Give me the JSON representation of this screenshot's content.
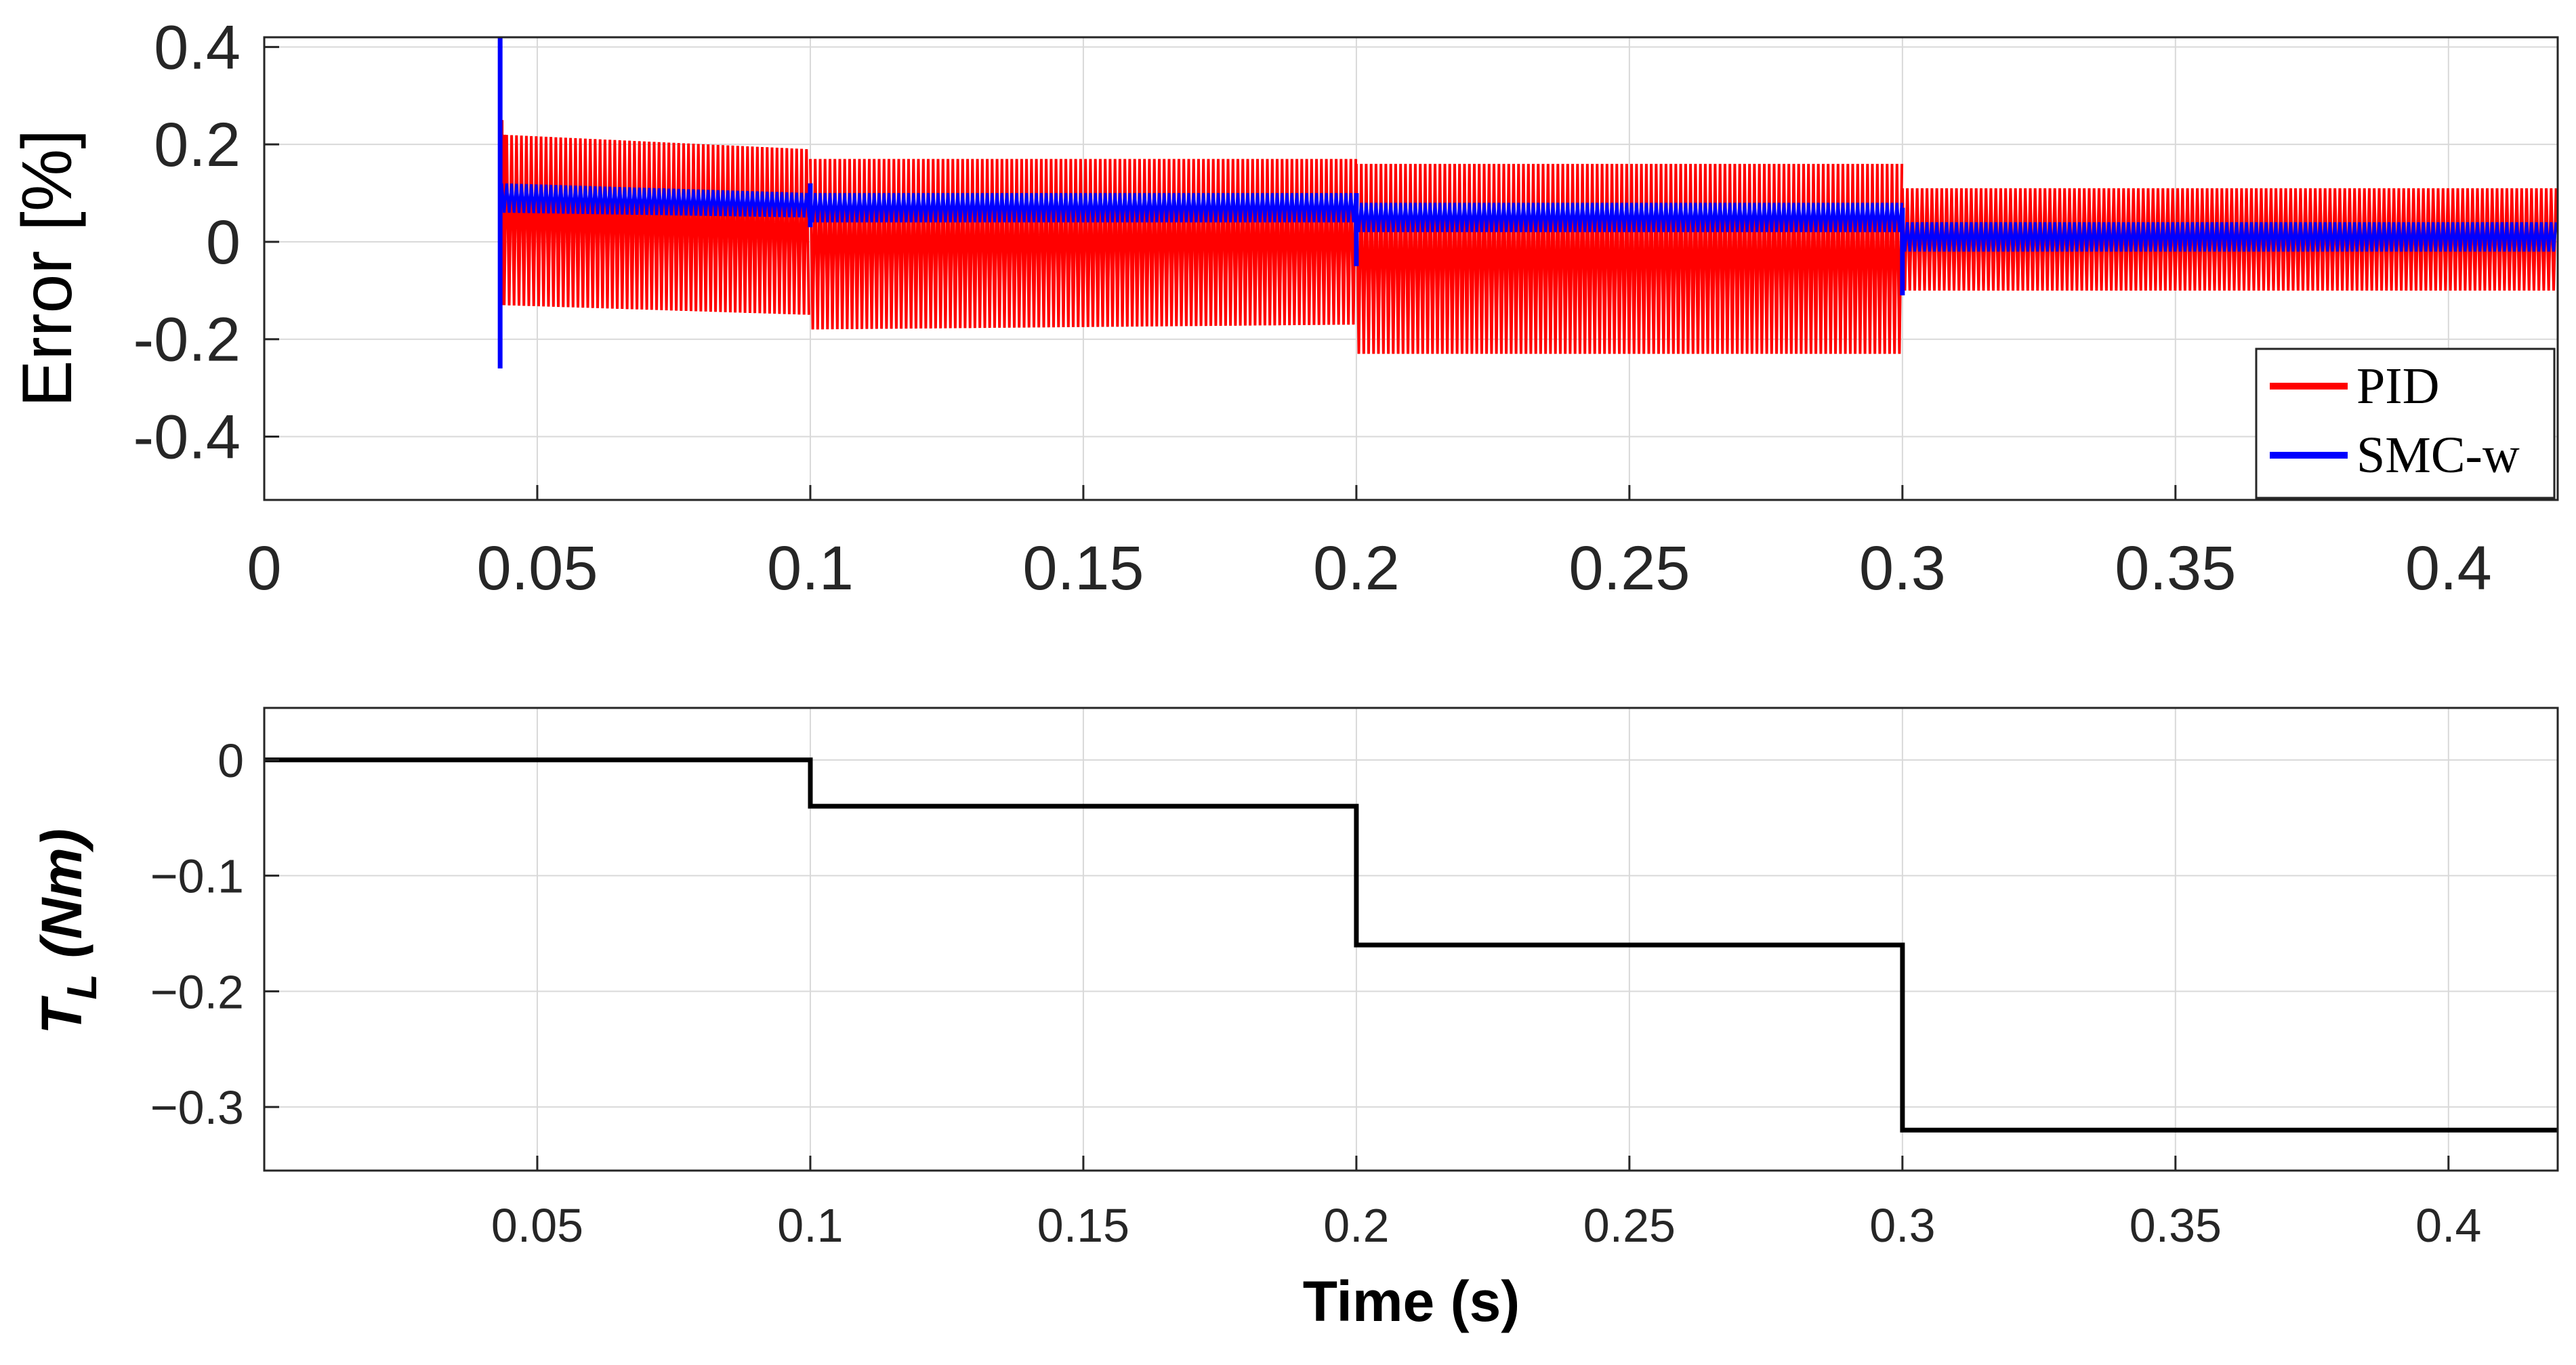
{
  "chart_data": [
    {
      "type": "line",
      "ylabel": "Error [%]",
      "xlim": [
        0,
        0.42
      ],
      "ylim": [
        -0.53,
        0.42
      ],
      "x_ticks": [
        0,
        0.05,
        0.1,
        0.15,
        0.2,
        0.25,
        0.3,
        0.35,
        0.4
      ],
      "x_tick_labels": [
        "0",
        "0.05",
        "0.1",
        "0.15",
        "0.2",
        "0.25",
        "0.3",
        "0.35",
        "0.4"
      ],
      "y_ticks": [
        0.4,
        0.2,
        0,
        -0.2,
        -0.4
      ],
      "y_tick_labels": [
        "0.4",
        "0.2",
        "0",
        "-0.2",
        "-0.4"
      ],
      "grid": true,
      "legend_position": "bottom-right",
      "series": [
        {
          "name": "PID",
          "color": "#ff0000",
          "style": "oscillating band",
          "band": [
            {
              "t": [
                0.0435,
                0.1
              ],
              "upper": [
                0.22,
                0.19
              ],
              "lower": [
                -0.13,
                -0.15
              ],
              "center": [
                0.07,
                0.06
              ]
            },
            {
              "t": [
                0.1,
                0.2
              ],
              "upper": [
                0.17,
                0.17
              ],
              "lower": [
                -0.18,
                -0.17
              ],
              "center": [
                0.07,
                0.07
              ]
            },
            {
              "t": [
                0.2,
                0.3
              ],
              "upper": [
                0.16,
                0.16
              ],
              "lower": [
                -0.23,
                -0.23
              ],
              "center": [
                0.04,
                0.04
              ]
            },
            {
              "t": [
                0.3,
                0.42
              ],
              "upper": [
                0.11,
                0.11
              ],
              "lower": [
                -0.1,
                -0.1
              ],
              "center": [
                0.01,
                0.01
              ]
            }
          ]
        },
        {
          "name": "SMC-w",
          "color": "#0000ff",
          "style": "oscillating band",
          "band": [
            {
              "t": [
                0.0435,
                0.1
              ],
              "upper": [
                0.12,
                0.1
              ],
              "lower": [
                0.06,
                0.05
              ],
              "center": [
                0.09,
                0.08
              ]
            },
            {
              "t": [
                0.1,
                0.2
              ],
              "upper": [
                0.1,
                0.1
              ],
              "lower": [
                0.04,
                0.04
              ],
              "center": [
                0.07,
                0.07
              ]
            },
            {
              "t": [
                0.2,
                0.3
              ],
              "upper": [
                0.08,
                0.08
              ],
              "lower": [
                0.02,
                0.02
              ],
              "center": [
                0.05,
                0.05
              ]
            },
            {
              "t": [
                0.3,
                0.42
              ],
              "upper": [
                0.04,
                0.04
              ],
              "lower": [
                -0.02,
                -0.02
              ],
              "center": [
                0.01,
                0.01
              ]
            }
          ],
          "spikes": [
            {
              "x": 0.0432,
              "y": [
                -0.26,
                0.42
              ]
            },
            {
              "x": 0.1,
              "y": [
                0.03,
                0.12
              ]
            },
            {
              "x": 0.2,
              "y": [
                -0.05,
                0.1
              ]
            },
            {
              "x": 0.3,
              "y": [
                -0.11,
                0.07
              ]
            }
          ]
        }
      ]
    },
    {
      "type": "line",
      "xlabel": "Time (s)",
      "ylabel": "T_L (Nm)",
      "ylabel_main": "T",
      "ylabel_subscript": "L",
      "ylabel_unit": " (Nm)",
      "xlim": [
        0,
        0.42
      ],
      "ylim": [
        -0.355,
        0.045
      ],
      "x_ticks": [
        0.05,
        0.1,
        0.15,
        0.2,
        0.25,
        0.3,
        0.35,
        0.4
      ],
      "x_tick_labels": [
        "0.05",
        "0.1",
        "0.15",
        "0.2",
        "0.25",
        "0.3",
        "0.35",
        "0.4"
      ],
      "y_ticks": [
        0,
        -0.1,
        -0.2,
        -0.3
      ],
      "y_tick_labels": [
        "0",
        "−0.1",
        "−0.2",
        "−0.3"
      ],
      "grid": true,
      "series": [
        {
          "color": "#000000",
          "x": [
            0,
            0.1,
            0.1,
            0.2,
            0.2,
            0.3,
            0.3,
            0.42
          ],
          "y": [
            0,
            0,
            -0.04,
            -0.04,
            -0.16,
            -0.16,
            -0.32,
            -0.32
          ]
        }
      ]
    }
  ]
}
